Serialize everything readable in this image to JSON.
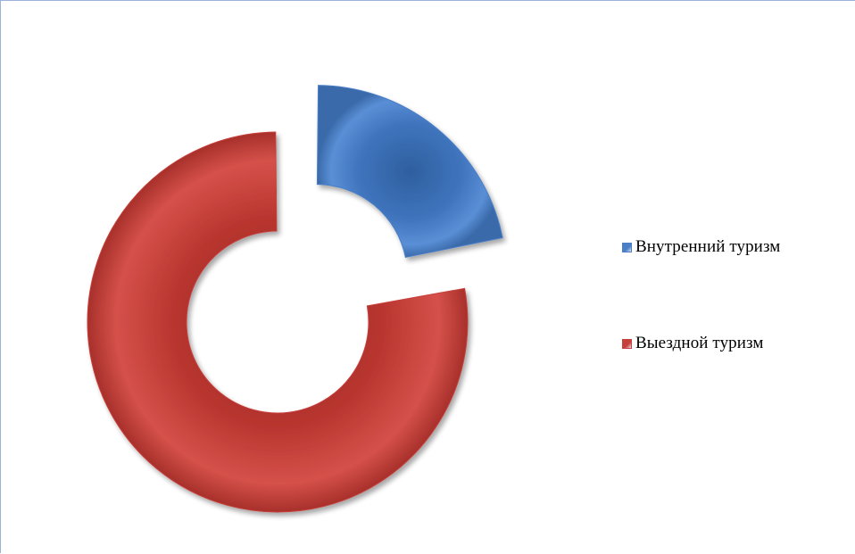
{
  "chart_data": {
    "type": "pie",
    "variant": "doughnut",
    "exploded": true,
    "title": "",
    "categories": [
      "Внутренний туризм",
      "Выездной туризм"
    ],
    "values": [
      22,
      78
    ],
    "colors": [
      "#4a7fc8",
      "#c6403c"
    ],
    "legend": {
      "position": "right",
      "entries": [
        "Внутренний туризм",
        "Выездной туризм"
      ]
    }
  }
}
